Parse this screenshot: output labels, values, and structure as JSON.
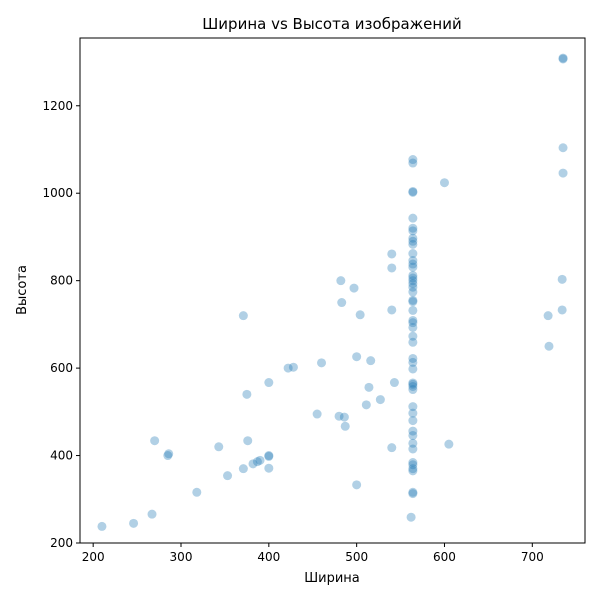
{
  "chart_data": {
    "type": "scatter",
    "title": "Ширина vs Высота изображений",
    "xlabel": "Ширина",
    "ylabel": "Высота",
    "xlim": [
      185,
      760
    ],
    "ylim": [
      200,
      1355
    ],
    "xticks": [
      200,
      300,
      400,
      500,
      600,
      700
    ],
    "yticks": [
      200,
      400,
      600,
      800,
      1000,
      1200
    ],
    "grid": false,
    "point_color": "#1f77b4",
    "point_alpha": 0.35,
    "points": [
      [
        210,
        238
      ],
      [
        246,
        245
      ],
      [
        267,
        266
      ],
      [
        270,
        434
      ],
      [
        285,
        400
      ],
      [
        286,
        404
      ],
      [
        318,
        316
      ],
      [
        343,
        420
      ],
      [
        353,
        354
      ],
      [
        371,
        720
      ],
      [
        371,
        370
      ],
      [
        375,
        540
      ],
      [
        376,
        434
      ],
      [
        382,
        381
      ],
      [
        387,
        386
      ],
      [
        390,
        389
      ],
      [
        400,
        371
      ],
      [
        400,
        398
      ],
      [
        400,
        400
      ],
      [
        400,
        567
      ],
      [
        422,
        600
      ],
      [
        428,
        602
      ],
      [
        455,
        495
      ],
      [
        460,
        612
      ],
      [
        480,
        490
      ],
      [
        482,
        800
      ],
      [
        483,
        750
      ],
      [
        486,
        488
      ],
      [
        487,
        467
      ],
      [
        497,
        783
      ],
      [
        500,
        333
      ],
      [
        500,
        626
      ],
      [
        504,
        722
      ],
      [
        511,
        516
      ],
      [
        514,
        556
      ],
      [
        516,
        617
      ],
      [
        527,
        528
      ],
      [
        540,
        418
      ],
      [
        540,
        733
      ],
      [
        540,
        829
      ],
      [
        540,
        861
      ],
      [
        543,
        567
      ],
      [
        562,
        259
      ],
      [
        564,
        313
      ],
      [
        564,
        316
      ],
      [
        564,
        365
      ],
      [
        564,
        370
      ],
      [
        564,
        379
      ],
      [
        564,
        384
      ],
      [
        564,
        415
      ],
      [
        564,
        428
      ],
      [
        564,
        446
      ],
      [
        564,
        456
      ],
      [
        564,
        480
      ],
      [
        564,
        497
      ],
      [
        564,
        512
      ],
      [
        564,
        551
      ],
      [
        564,
        558
      ],
      [
        564,
        563
      ],
      [
        564,
        566
      ],
      [
        564,
        598
      ],
      [
        564,
        613
      ],
      [
        564,
        622
      ],
      [
        564,
        659
      ],
      [
        564,
        673
      ],
      [
        564,
        693
      ],
      [
        564,
        704
      ],
      [
        564,
        709
      ],
      [
        564,
        732
      ],
      [
        564,
        752
      ],
      [
        564,
        755
      ],
      [
        564,
        774
      ],
      [
        564,
        785
      ],
      [
        564,
        793
      ],
      [
        564,
        800
      ],
      [
        564,
        806
      ],
      [
        564,
        812
      ],
      [
        564,
        831
      ],
      [
        564,
        838
      ],
      [
        564,
        846
      ],
      [
        564,
        862
      ],
      [
        564,
        883
      ],
      [
        564,
        890
      ],
      [
        564,
        897
      ],
      [
        564,
        914
      ],
      [
        564,
        920
      ],
      [
        564,
        943
      ],
      [
        564,
        1002
      ],
      [
        564,
        1004
      ],
      [
        564,
        1069
      ],
      [
        564,
        1077
      ],
      [
        600,
        1024
      ],
      [
        605,
        426
      ],
      [
        718,
        720
      ],
      [
        719,
        650
      ],
      [
        734,
        733
      ],
      [
        734,
        803
      ],
      [
        735,
        1046
      ],
      [
        735,
        1104
      ],
      [
        735,
        1307
      ],
      [
        735,
        1309
      ]
    ]
  }
}
